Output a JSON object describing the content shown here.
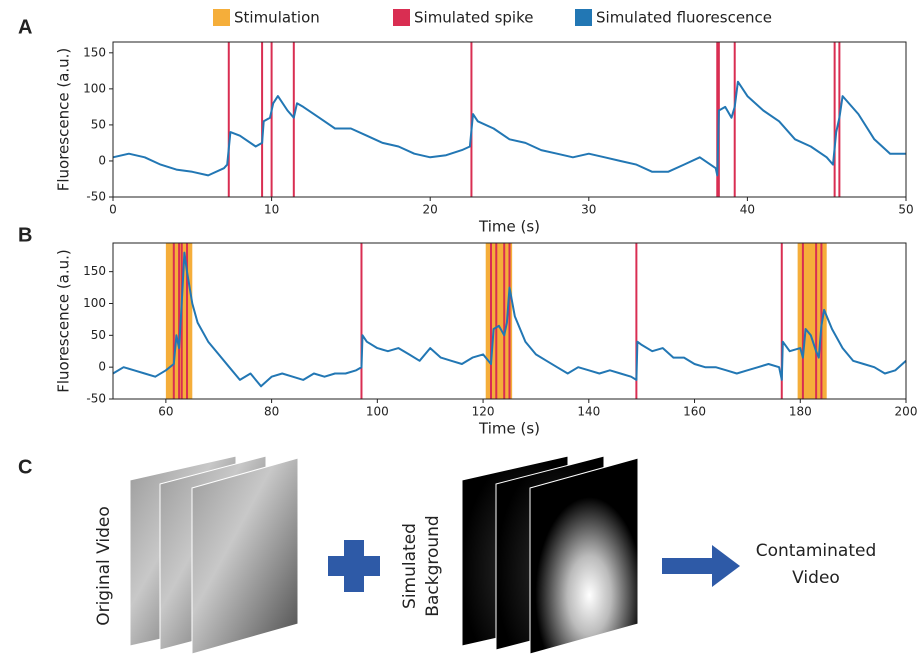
{
  "legend": [
    {
      "name": "Stimulation",
      "color": "#f5ae3a"
    },
    {
      "name": "Simulated spike",
      "color": "#d92e52"
    },
    {
      "name": "Simulated fluorescence",
      "color": "#2277b4"
    }
  ],
  "chart_data": [
    {
      "type": "line",
      "label": "A",
      "xlabel": "Time (s)",
      "ylabel": "Fluorescence (a.u.)",
      "xlim": [
        0,
        50
      ],
      "xticks": [
        0,
        10,
        20,
        30,
        40,
        50
      ],
      "ylim": [
        -50,
        165
      ],
      "yticks": [
        -50,
        0,
        50,
        100,
        150
      ],
      "spikes": [
        7.3,
        9.4,
        10.0,
        11.4,
        22.6,
        38.1,
        38.2,
        39.2,
        45.5,
        45.8
      ],
      "x": [
        0,
        1,
        2,
        3,
        4,
        5,
        6,
        7,
        7.2,
        7.4,
        8,
        9,
        9.4,
        9.5,
        9.9,
        10.1,
        10.4,
        11,
        11.4,
        11.6,
        12,
        13,
        14,
        15,
        16,
        17,
        18,
        19,
        20,
        21,
        22,
        22.5,
        22.7,
        23,
        24,
        25,
        26,
        27,
        28,
        29,
        30,
        31,
        32,
        33,
        34,
        35,
        36,
        37,
        38,
        38.1,
        38.2,
        38.6,
        39,
        39.2,
        39.4,
        40,
        41,
        42,
        43,
        44,
        45,
        45.4,
        45.6,
        45.8,
        46,
        47,
        48,
        49,
        50
      ],
      "values": [
        5,
        10,
        5,
        -5,
        -12,
        -15,
        -20,
        -10,
        -5,
        40,
        35,
        20,
        25,
        55,
        60,
        80,
        90,
        70,
        60,
        80,
        75,
        60,
        45,
        45,
        35,
        25,
        20,
        10,
        5,
        8,
        15,
        20,
        65,
        55,
        45,
        30,
        25,
        15,
        10,
        5,
        10,
        5,
        0,
        -5,
        -15,
        -15,
        -5,
        5,
        -10,
        -20,
        70,
        75,
        60,
        75,
        110,
        90,
        70,
        55,
        30,
        20,
        5,
        -5,
        40,
        60,
        90,
        65,
        30,
        10,
        10
      ]
    },
    {
      "type": "line",
      "label": "B",
      "xlabel": "Time (s)",
      "ylabel": "Fluorescence (a.u.)",
      "xlim": [
        50,
        200
      ],
      "xticks": [
        60,
        80,
        100,
        120,
        140,
        160,
        180,
        200
      ],
      "ylim": [
        -50,
        195
      ],
      "yticks": [
        -50,
        0,
        50,
        100,
        150
      ],
      "stimulation": [
        [
          60,
          65
        ],
        [
          120.5,
          125.5
        ],
        [
          179.5,
          185
        ]
      ],
      "spikes": [
        61.5,
        62.5,
        63,
        64,
        97,
        121.5,
        122.5,
        124,
        125,
        149,
        176.5,
        180.5,
        183,
        184
      ],
      "x": [
        50,
        52,
        54,
        56,
        58,
        60,
        61.5,
        62,
        62.5,
        63,
        63.5,
        64,
        65,
        66,
        68,
        70,
        72,
        74,
        76,
        78,
        80,
        82,
        84,
        86,
        88,
        90,
        92,
        94,
        96,
        97,
        97.2,
        98,
        100,
        102,
        104,
        106,
        108,
        110,
        112,
        114,
        116,
        118,
        120,
        121.5,
        122,
        123,
        124,
        124.5,
        125,
        126,
        128,
        130,
        132,
        134,
        136,
        138,
        140,
        142,
        144,
        146,
        148,
        149,
        149.2,
        150,
        152,
        154,
        156,
        158,
        160,
        162,
        164,
        166,
        168,
        170,
        172,
        174,
        176,
        176.5,
        176.7,
        178,
        180,
        180.5,
        181,
        182,
        183,
        183.5,
        184,
        184.5,
        186,
        188,
        190,
        192,
        194,
        196,
        198,
        200
      ],
      "values": [
        -10,
        0,
        -5,
        -10,
        -15,
        -5,
        5,
        50,
        30,
        100,
        180,
        150,
        100,
        70,
        40,
        20,
        0,
        -20,
        -10,
        -30,
        -15,
        -10,
        -15,
        -20,
        -10,
        -15,
        -10,
        -10,
        -5,
        0,
        50,
        40,
        30,
        25,
        30,
        20,
        10,
        30,
        15,
        10,
        5,
        15,
        20,
        5,
        60,
        65,
        50,
        70,
        125,
        80,
        40,
        20,
        10,
        0,
        -10,
        0,
        -5,
        -10,
        -5,
        -10,
        -15,
        -20,
        40,
        35,
        25,
        30,
        15,
        15,
        5,
        0,
        0,
        -5,
        -10,
        -5,
        0,
        5,
        0,
        -20,
        40,
        25,
        30,
        15,
        60,
        50,
        25,
        15,
        65,
        90,
        60,
        30,
        10,
        5,
        0,
        -10,
        -5,
        10
      ]
    }
  ],
  "panel_c": {
    "label": "C",
    "original": "Original Video",
    "background": [
      "Simulated",
      "Background"
    ],
    "result": [
      "Contaminated",
      "Video"
    ]
  }
}
